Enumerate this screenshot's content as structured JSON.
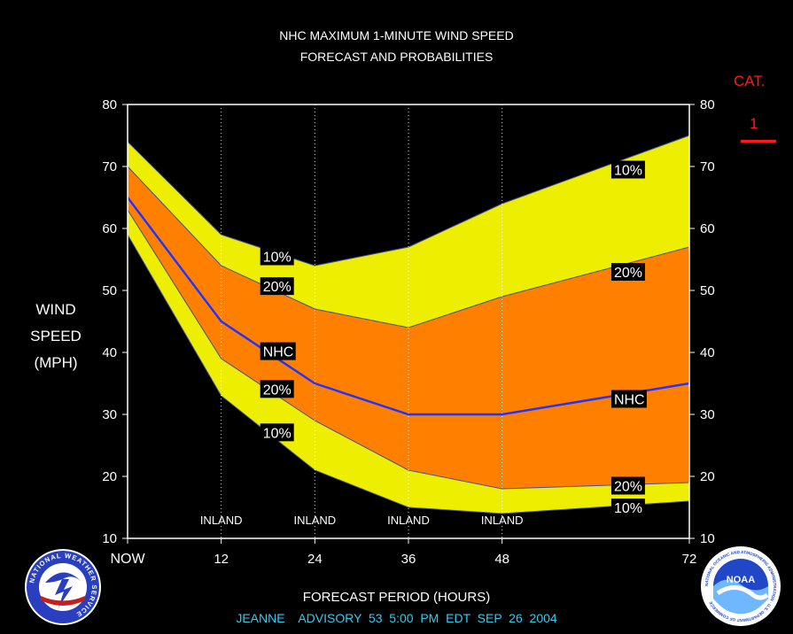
{
  "header": {
    "title_line1": "NHC MAXIMUM 1-MINUTE WIND SPEED",
    "title_line2": "FORECAST AND PROBABILITIES"
  },
  "axis": {
    "y_label_lines": [
      "WIND",
      "SPEED",
      "(MPH)"
    ],
    "x_label": "FORECAST PERIOD (HOURS)"
  },
  "category": {
    "label": "CAT.",
    "value": "1",
    "color": "#ff1a1a"
  },
  "footer": {
    "advisory": "JEANNE    ADVISORY  53  5:00  PM  EDT  SEP  26  2004",
    "color": "#33ccee"
  },
  "logos": {
    "left": {
      "name": "national-weather-service-logo",
      "text": "NATIONAL WEATHER SERVICE"
    },
    "right": {
      "name": "noaa-logo",
      "text": "NOAA",
      "ring_text": "NATIONAL OCEANIC AND ATMOSPHERIC ADMINISTRATION · U.S. DEPARTMENT OF COMMERCE"
    }
  },
  "colors": {
    "band_10": "#eeee00",
    "band_20": "#ff8000",
    "nhc_line": "#2233ff",
    "background": "#000000"
  },
  "chart_data": {
    "type": "area",
    "title": "NHC MAXIMUM 1-MINUTE WIND SPEED FORECAST AND PROBABILITIES",
    "xlabel": "FORECAST PERIOD (HOURS)",
    "ylabel": "WIND SPEED (MPH)",
    "xlim": [
      0,
      72
    ],
    "ylim": [
      10,
      80
    ],
    "x_ticks": [
      0,
      12,
      24,
      36,
      48,
      72
    ],
    "x_tick_labels": [
      "NOW",
      "12",
      "24",
      "36",
      "48",
      "72"
    ],
    "y_ticks": [
      10,
      20,
      30,
      40,
      50,
      60,
      70,
      80
    ],
    "vertical_markers": [
      {
        "x": 12,
        "label": "INLAND"
      },
      {
        "x": 24,
        "label": "INLAND"
      },
      {
        "x": 36,
        "label": "INLAND"
      },
      {
        "x": 48,
        "label": "INLAND"
      }
    ],
    "x": [
      0,
      12,
      24,
      36,
      48,
      72
    ],
    "series": [
      {
        "name": "10%",
        "role": "upper",
        "values": [
          74,
          59,
          54,
          57,
          64,
          75
        ]
      },
      {
        "name": "20%",
        "role": "upper",
        "values": [
          70,
          54,
          47,
          44,
          49,
          57
        ]
      },
      {
        "name": "NHC",
        "role": "forecast",
        "values": [
          65,
          45,
          35,
          30,
          30,
          35
        ]
      },
      {
        "name": "20%",
        "role": "lower",
        "values": [
          63,
          39,
          29,
          21,
          18,
          19
        ]
      },
      {
        "name": "10%",
        "role": "lower",
        "values": [
          59,
          33,
          21,
          15,
          14,
          16
        ]
      }
    ],
    "annotations": [
      {
        "text": "10%",
        "x": 17,
        "y": 55.5
      },
      {
        "text": "20%",
        "x": 17,
        "y": 50.7
      },
      {
        "text": "NHC",
        "x": 17,
        "y": 40.2
      },
      {
        "text": "20%",
        "x": 17,
        "y": 34.1
      },
      {
        "text": "10%",
        "x": 17,
        "y": 27.1
      },
      {
        "text": "10%",
        "x": 62,
        "y": 69.5
      },
      {
        "text": "20%",
        "x": 62,
        "y": 53.0
      },
      {
        "text": "NHC",
        "x": 62,
        "y": 32.5
      },
      {
        "text": "20%",
        "x": 62,
        "y": 18.5
      },
      {
        "text": "10%",
        "x": 62,
        "y": 15.0
      }
    ]
  }
}
